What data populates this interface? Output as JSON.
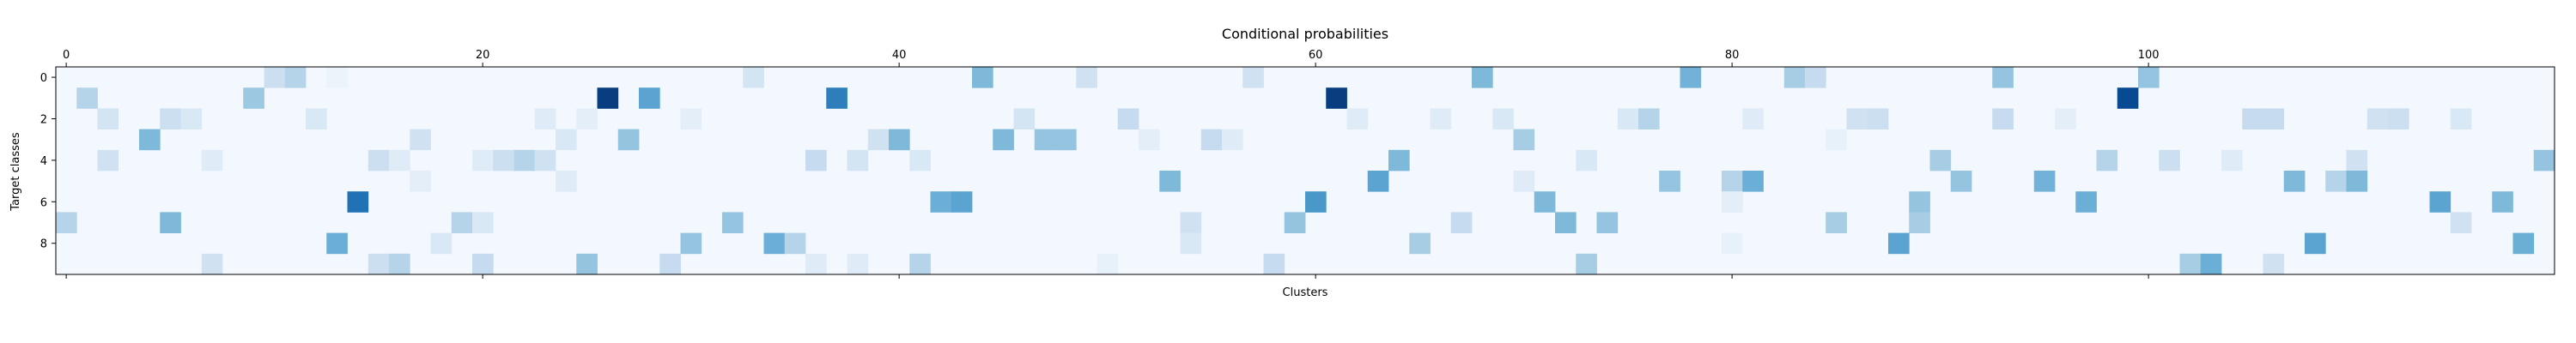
{
  "chart_data": {
    "type": "heatmap",
    "title": "Conditional probabilities",
    "xlabel": "Clusters",
    "ylabel": "Target classes",
    "n_cols": 120,
    "n_rows": 10,
    "x_ticks": [
      0,
      20,
      40,
      60,
      80,
      100
    ],
    "x_tick_labels": [
      "0",
      "20",
      "40",
      "60",
      "80",
      "100"
    ],
    "x_tick_position": "top",
    "y_ticks": [
      0,
      2,
      4,
      6,
      8
    ],
    "y_tick_labels": [
      "0",
      "2",
      "4",
      "6",
      "8"
    ],
    "colormap": "Blues",
    "grid": false,
    "background_level": 0.02,
    "cells": [
      {
        "row": 0,
        "col": 10,
        "v": 0.22
      },
      {
        "row": 0,
        "col": 11,
        "v": 0.3
      },
      {
        "row": 0,
        "col": 13,
        "v": 0.06
      },
      {
        "row": 0,
        "col": 33,
        "v": 0.18
      },
      {
        "row": 0,
        "col": 44,
        "v": 0.45
      },
      {
        "row": 0,
        "col": 49,
        "v": 0.2
      },
      {
        "row": 0,
        "col": 57,
        "v": 0.2
      },
      {
        "row": 0,
        "col": 68,
        "v": 0.45
      },
      {
        "row": 0,
        "col": 78,
        "v": 0.48
      },
      {
        "row": 0,
        "col": 83,
        "v": 0.35
      },
      {
        "row": 0,
        "col": 84,
        "v": 0.25
      },
      {
        "row": 0,
        "col": 93,
        "v": 0.4
      },
      {
        "row": 0,
        "col": 100,
        "v": 0.4
      },
      {
        "row": 1,
        "col": 1,
        "v": 0.3
      },
      {
        "row": 1,
        "col": 9,
        "v": 0.38
      },
      {
        "row": 1,
        "col": 26,
        "v": 0.95
      },
      {
        "row": 1,
        "col": 28,
        "v": 0.55
      },
      {
        "row": 1,
        "col": 37,
        "v": 0.7
      },
      {
        "row": 1,
        "col": 61,
        "v": 0.95
      },
      {
        "row": 1,
        "col": 99,
        "v": 0.9
      },
      {
        "row": 2,
        "col": 2,
        "v": 0.18
      },
      {
        "row": 2,
        "col": 5,
        "v": 0.22
      },
      {
        "row": 2,
        "col": 6,
        "v": 0.15
      },
      {
        "row": 2,
        "col": 12,
        "v": 0.15
      },
      {
        "row": 2,
        "col": 23,
        "v": 0.12
      },
      {
        "row": 2,
        "col": 25,
        "v": 0.1
      },
      {
        "row": 2,
        "col": 30,
        "v": 0.1
      },
      {
        "row": 2,
        "col": 46,
        "v": 0.18
      },
      {
        "row": 2,
        "col": 51,
        "v": 0.25
      },
      {
        "row": 2,
        "col": 62,
        "v": 0.12
      },
      {
        "row": 2,
        "col": 66,
        "v": 0.12
      },
      {
        "row": 2,
        "col": 69,
        "v": 0.15
      },
      {
        "row": 2,
        "col": 75,
        "v": 0.15
      },
      {
        "row": 2,
        "col": 76,
        "v": 0.3
      },
      {
        "row": 2,
        "col": 81,
        "v": 0.12
      },
      {
        "row": 2,
        "col": 86,
        "v": 0.2
      },
      {
        "row": 2,
        "col": 87,
        "v": 0.22
      },
      {
        "row": 2,
        "col": 93,
        "v": 0.25
      },
      {
        "row": 2,
        "col": 96,
        "v": 0.1
      },
      {
        "row": 2,
        "col": 105,
        "v": 0.25
      },
      {
        "row": 2,
        "col": 106,
        "v": 0.25
      },
      {
        "row": 2,
        "col": 111,
        "v": 0.2
      },
      {
        "row": 2,
        "col": 112,
        "v": 0.22
      },
      {
        "row": 2,
        "col": 115,
        "v": 0.15
      },
      {
        "row": 3,
        "col": 4,
        "v": 0.45
      },
      {
        "row": 3,
        "col": 17,
        "v": 0.2
      },
      {
        "row": 3,
        "col": 24,
        "v": 0.15
      },
      {
        "row": 3,
        "col": 27,
        "v": 0.4
      },
      {
        "row": 3,
        "col": 39,
        "v": 0.2
      },
      {
        "row": 3,
        "col": 40,
        "v": 0.45
      },
      {
        "row": 3,
        "col": 45,
        "v": 0.45
      },
      {
        "row": 3,
        "col": 47,
        "v": 0.4
      },
      {
        "row": 3,
        "col": 48,
        "v": 0.4
      },
      {
        "row": 3,
        "col": 52,
        "v": 0.1
      },
      {
        "row": 3,
        "col": 55,
        "v": 0.25
      },
      {
        "row": 3,
        "col": 56,
        "v": 0.12
      },
      {
        "row": 3,
        "col": 70,
        "v": 0.35
      },
      {
        "row": 3,
        "col": 85,
        "v": 0.08
      },
      {
        "row": 4,
        "col": 2,
        "v": 0.2
      },
      {
        "row": 4,
        "col": 7,
        "v": 0.12
      },
      {
        "row": 4,
        "col": 15,
        "v": 0.22
      },
      {
        "row": 4,
        "col": 16,
        "v": 0.12
      },
      {
        "row": 4,
        "col": 20,
        "v": 0.12
      },
      {
        "row": 4,
        "col": 21,
        "v": 0.22
      },
      {
        "row": 4,
        "col": 22,
        "v": 0.3
      },
      {
        "row": 4,
        "col": 23,
        "v": 0.2
      },
      {
        "row": 4,
        "col": 36,
        "v": 0.25
      },
      {
        "row": 4,
        "col": 38,
        "v": 0.18
      },
      {
        "row": 4,
        "col": 41,
        "v": 0.15
      },
      {
        "row": 4,
        "col": 64,
        "v": 0.45
      },
      {
        "row": 4,
        "col": 73,
        "v": 0.15
      },
      {
        "row": 4,
        "col": 90,
        "v": 0.35
      },
      {
        "row": 4,
        "col": 98,
        "v": 0.3
      },
      {
        "row": 4,
        "col": 101,
        "v": 0.22
      },
      {
        "row": 4,
        "col": 104,
        "v": 0.12
      },
      {
        "row": 4,
        "col": 110,
        "v": 0.2
      },
      {
        "row": 4,
        "col": 119,
        "v": 0.4
      },
      {
        "row": 5,
        "col": 17,
        "v": 0.1
      },
      {
        "row": 5,
        "col": 24,
        "v": 0.12
      },
      {
        "row": 5,
        "col": 53,
        "v": 0.45
      },
      {
        "row": 5,
        "col": 63,
        "v": 0.55
      },
      {
        "row": 5,
        "col": 70,
        "v": 0.12
      },
      {
        "row": 5,
        "col": 77,
        "v": 0.4
      },
      {
        "row": 5,
        "col": 80,
        "v": 0.3
      },
      {
        "row": 5,
        "col": 81,
        "v": 0.5
      },
      {
        "row": 5,
        "col": 91,
        "v": 0.4
      },
      {
        "row": 5,
        "col": 95,
        "v": 0.48
      },
      {
        "row": 5,
        "col": 107,
        "v": 0.45
      },
      {
        "row": 5,
        "col": 109,
        "v": 0.3
      },
      {
        "row": 5,
        "col": 110,
        "v": 0.45
      },
      {
        "row": 6,
        "col": 14,
        "v": 0.75
      },
      {
        "row": 6,
        "col": 42,
        "v": 0.5
      },
      {
        "row": 6,
        "col": 43,
        "v": 0.55
      },
      {
        "row": 6,
        "col": 60,
        "v": 0.6
      },
      {
        "row": 6,
        "col": 71,
        "v": 0.45
      },
      {
        "row": 6,
        "col": 80,
        "v": 0.1
      },
      {
        "row": 6,
        "col": 89,
        "v": 0.4
      },
      {
        "row": 6,
        "col": 97,
        "v": 0.5
      },
      {
        "row": 6,
        "col": 114,
        "v": 0.55
      },
      {
        "row": 6,
        "col": 117,
        "v": 0.45
      },
      {
        "row": 7,
        "col": 0,
        "v": 0.3
      },
      {
        "row": 7,
        "col": 5,
        "v": 0.45
      },
      {
        "row": 7,
        "col": 19,
        "v": 0.3
      },
      {
        "row": 7,
        "col": 20,
        "v": 0.15
      },
      {
        "row": 7,
        "col": 32,
        "v": 0.4
      },
      {
        "row": 7,
        "col": 54,
        "v": 0.2
      },
      {
        "row": 7,
        "col": 59,
        "v": 0.4
      },
      {
        "row": 7,
        "col": 67,
        "v": 0.25
      },
      {
        "row": 7,
        "col": 72,
        "v": 0.45
      },
      {
        "row": 7,
        "col": 74,
        "v": 0.4
      },
      {
        "row": 7,
        "col": 85,
        "v": 0.35
      },
      {
        "row": 7,
        "col": 89,
        "v": 0.35
      },
      {
        "row": 7,
        "col": 115,
        "v": 0.2
      },
      {
        "row": 8,
        "col": 13,
        "v": 0.5
      },
      {
        "row": 8,
        "col": 18,
        "v": 0.15
      },
      {
        "row": 8,
        "col": 30,
        "v": 0.4
      },
      {
        "row": 8,
        "col": 34,
        "v": 0.5
      },
      {
        "row": 8,
        "col": 35,
        "v": 0.3
      },
      {
        "row": 8,
        "col": 54,
        "v": 0.15
      },
      {
        "row": 8,
        "col": 65,
        "v": 0.35
      },
      {
        "row": 8,
        "col": 80,
        "v": 0.08
      },
      {
        "row": 8,
        "col": 88,
        "v": 0.55
      },
      {
        "row": 8,
        "col": 108,
        "v": 0.55
      },
      {
        "row": 8,
        "col": 118,
        "v": 0.5
      },
      {
        "row": 9,
        "col": 7,
        "v": 0.2
      },
      {
        "row": 9,
        "col": 15,
        "v": 0.22
      },
      {
        "row": 9,
        "col": 16,
        "v": 0.3
      },
      {
        "row": 9,
        "col": 20,
        "v": 0.25
      },
      {
        "row": 9,
        "col": 25,
        "v": 0.4
      },
      {
        "row": 9,
        "col": 29,
        "v": 0.25
      },
      {
        "row": 9,
        "col": 36,
        "v": 0.12
      },
      {
        "row": 9,
        "col": 38,
        "v": 0.12
      },
      {
        "row": 9,
        "col": 41,
        "v": 0.3
      },
      {
        "row": 9,
        "col": 50,
        "v": 0.08
      },
      {
        "row": 9,
        "col": 58,
        "v": 0.25
      },
      {
        "row": 9,
        "col": 73,
        "v": 0.35
      },
      {
        "row": 9,
        "col": 102,
        "v": 0.35
      },
      {
        "row": 9,
        "col": 103,
        "v": 0.5
      },
      {
        "row": 9,
        "col": 106,
        "v": 0.2
      }
    ]
  }
}
